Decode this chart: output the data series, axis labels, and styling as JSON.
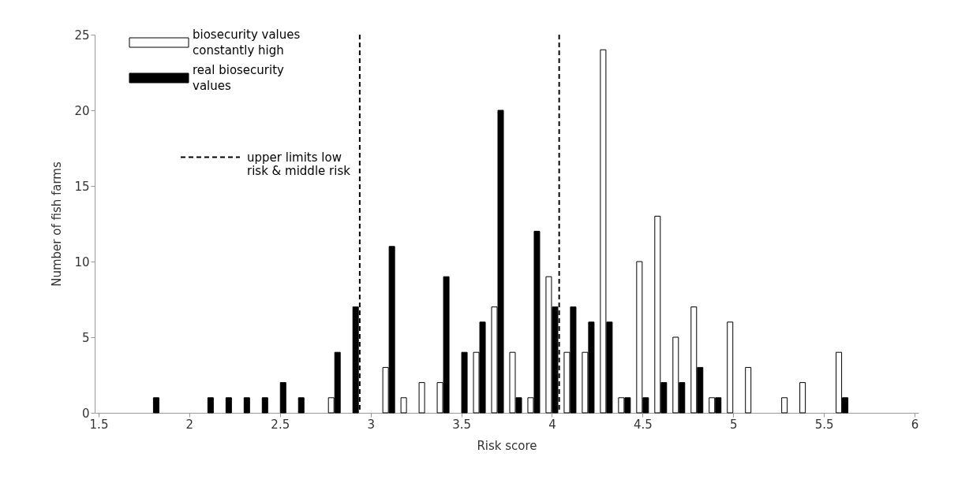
{
  "chart_data": {
    "type": "bar",
    "xlabel": "Risk score",
    "ylabel": "Number of fish farms",
    "series": [
      {
        "name": "biosecurity values constantly high",
        "color": "#ffffff",
        "x": [
          2.8,
          3.1,
          3.2,
          3.3,
          3.4,
          3.6,
          3.7,
          3.8,
          3.9,
          4.0,
          4.1,
          4.2,
          4.3,
          4.4,
          4.5,
          4.6,
          4.7,
          4.8,
          4.9,
          5.0,
          5.1,
          5.3,
          5.4,
          5.6
        ],
        "values": [
          1,
          3,
          1,
          2,
          2,
          4,
          7,
          4,
          1,
          9,
          4,
          4,
          24,
          1,
          10,
          13,
          5,
          7,
          1,
          6,
          3,
          1,
          2,
          4
        ]
      },
      {
        "name": "real biosecurity values",
        "color": "#000000",
        "x": [
          1.8,
          2.1,
          2.2,
          2.3,
          2.4,
          2.5,
          2.6,
          2.8,
          2.9,
          3.1,
          3.4,
          3.5,
          3.6,
          3.7,
          3.8,
          3.9,
          4.0,
          4.1,
          4.2,
          4.3,
          4.4,
          4.5,
          4.6,
          4.7,
          4.8,
          4.9,
          5.6
        ],
        "values": [
          1,
          1,
          1,
          1,
          1,
          2,
          1,
          4,
          7,
          11,
          9,
          4,
          6,
          20,
          1,
          12,
          7,
          7,
          6,
          6,
          1,
          1,
          2,
          2,
          3,
          1,
          1
        ]
      }
    ],
    "ref_lines": [
      {
        "axis": "x",
        "value": 2.94,
        "label": "upper limits low risk & middle risk",
        "color": "#000000",
        "line_style": "dashed"
      },
      {
        "axis": "x",
        "value": 4.04,
        "color": "#000000",
        "line_style": "dashed"
      }
    ],
    "xlim": [
      1.5,
      6
    ],
    "xticks": [
      1.5,
      2,
      2.5,
      3,
      3.5,
      4,
      4.5,
      5,
      5.5,
      6
    ],
    "ylim": [
      0,
      25
    ],
    "yticks": [
      0,
      5,
      10,
      15,
      20,
      25
    ],
    "grid": false,
    "legend": "top left"
  }
}
